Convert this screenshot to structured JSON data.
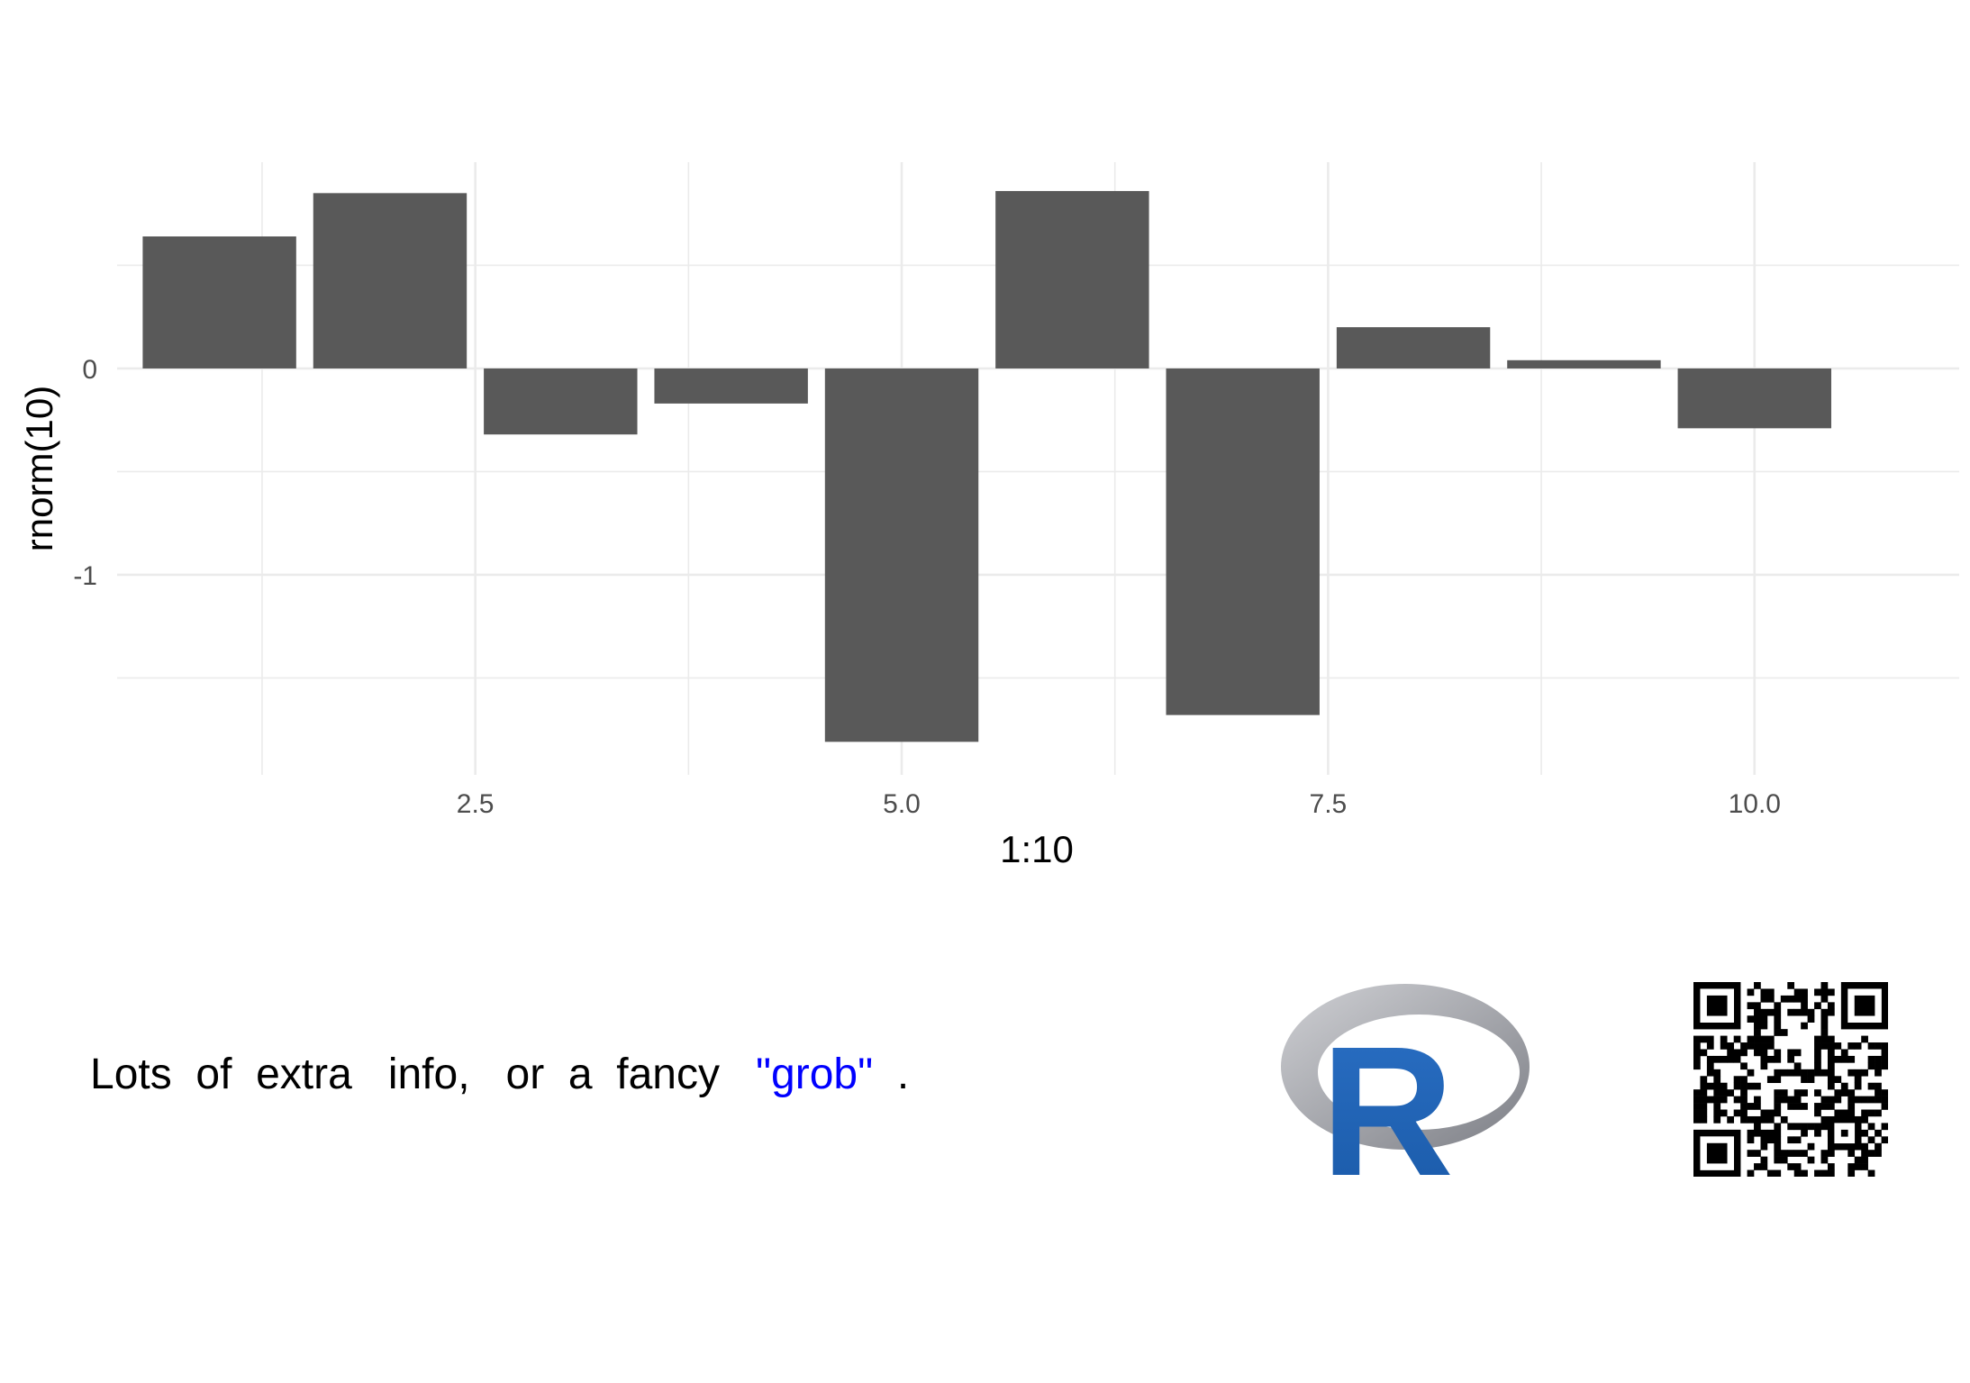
{
  "chart_data": {
    "type": "bar",
    "xlabel": "1:10",
    "ylabel": "rnorm(10)",
    "x": [
      1,
      2,
      3,
      4,
      5,
      6,
      7,
      8,
      9,
      10
    ],
    "values": [
      0.64,
      0.85,
      -0.32,
      -0.17,
      -1.81,
      0.86,
      -1.68,
      0.2,
      0.04,
      -0.29
    ],
    "xlim": [
      0.4,
      11.2
    ],
    "ylim": [
      -1.97,
      1.0
    ],
    "x_ticks": [
      2.5,
      5.0,
      7.5,
      10.0
    ],
    "x_tick_labels": [
      "2.5",
      "5.0",
      "7.5",
      "10.0"
    ],
    "y_ticks": [
      0,
      -1
    ],
    "y_tick_labels": [
      "0",
      "-1"
    ],
    "grid": true,
    "bar_color": "#595959",
    "grid_color": "#ebebeb"
  },
  "caption": {
    "pre": "Lots  of  extra   info,   or  a  fancy   ",
    "highlight": "\"grob\"",
    "post": "  .",
    "highlight_color": "#0000ff"
  },
  "logos": {
    "r_logo": "R",
    "r_logo_color": "#1e63b8",
    "qr_icon": "qr-code-icon"
  }
}
